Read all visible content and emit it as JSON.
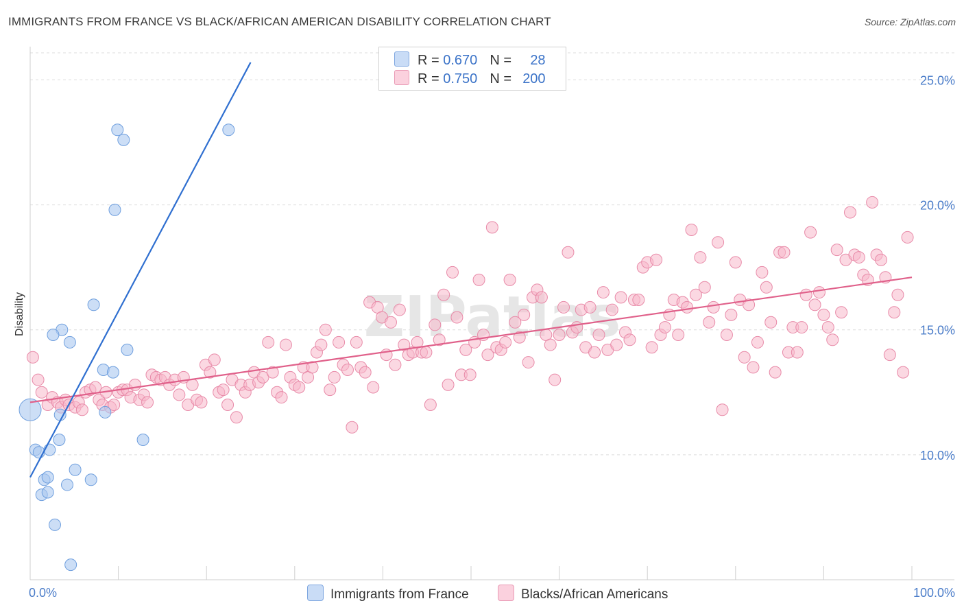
{
  "header": {
    "title": "IMMIGRANTS FROM FRANCE VS BLACK/AFRICAN AMERICAN DISABILITY CORRELATION CHART",
    "source": "Source: ZipAtlas.com"
  },
  "watermark": "ZIPatlas",
  "legend": {
    "rows": [
      {
        "r_label": "R = ",
        "r_value": "0.670",
        "n_label": "N = ",
        "n_value": "28",
        "color": "#aac8f0"
      },
      {
        "r_label": "R = ",
        "r_value": "0.750",
        "n_label": "N = ",
        "n_value": "200",
        "color": "#f7b8cb"
      }
    ]
  },
  "bottom_legend": {
    "items": [
      {
        "label": "Immigrants from France",
        "color": "#aac8f0"
      },
      {
        "label": "Blacks/African Americans",
        "color": "#f7b8cb"
      }
    ]
  },
  "chart_data": {
    "type": "scatter",
    "title": "IMMIGRANTS FROM FRANCE VS BLACK/AFRICAN AMERICAN DISABILITY CORRELATION CHART",
    "xlabel": "",
    "ylabel": "Disability",
    "xlim": [
      0,
      100
    ],
    "ylim": [
      5.0,
      26.0
    ],
    "x_tick_labels": [
      "0.0%",
      "100.0%"
    ],
    "y_ticks": [
      10,
      15,
      20,
      25
    ],
    "y_tick_labels": [
      "10.0%",
      "15.0%",
      "20.0%",
      "25.0%"
    ],
    "series": [
      {
        "name": "Immigrants from France",
        "color": "#aac8f0",
        "stroke": "#6f9fde",
        "line_color": "#2f6fd0",
        "R": 0.67,
        "N": 28,
        "trend": {
          "x": [
            0,
            25
          ],
          "y": [
            9.1,
            25.7
          ]
        },
        "points": [
          [
            0.0,
            11.8
          ],
          [
            0.6,
            10.2
          ],
          [
            1.0,
            10.1
          ],
          [
            1.6,
            9.0
          ],
          [
            2.2,
            10.2
          ],
          [
            1.3,
            8.4
          ],
          [
            2.0,
            9.1
          ],
          [
            2.0,
            8.5
          ],
          [
            2.8,
            7.2
          ],
          [
            3.3,
            10.6
          ],
          [
            3.6,
            15.0
          ],
          [
            2.6,
            14.8
          ],
          [
            4.5,
            14.5
          ],
          [
            4.2,
            8.8
          ],
          [
            3.4,
            11.6
          ],
          [
            5.1,
            9.4
          ],
          [
            4.6,
            5.6
          ],
          [
            6.9,
            9.0
          ],
          [
            7.2,
            16.0
          ],
          [
            8.3,
            13.4
          ],
          [
            8.5,
            11.7
          ],
          [
            9.4,
            13.3
          ],
          [
            9.6,
            19.8
          ],
          [
            9.9,
            23.0
          ],
          [
            10.6,
            22.6
          ],
          [
            11.0,
            14.2
          ],
          [
            12.8,
            10.6
          ],
          [
            22.5,
            23.0
          ]
        ]
      },
      {
        "name": "Blacks/African Americans",
        "color": "#f7b8cb",
        "stroke": "#e88aa8",
        "line_color": "#e0608a",
        "R": 0.75,
        "N": 200,
        "trend": {
          "x": [
            0,
            100
          ],
          "y": [
            12.1,
            17.1
          ]
        },
        "points": [
          [
            0.3,
            13.9
          ],
          [
            0.9,
            13.0
          ],
          [
            1.3,
            12.5
          ],
          [
            2.0,
            12.0
          ],
          [
            2.5,
            12.3
          ],
          [
            3.1,
            12.1
          ],
          [
            3.5,
            11.9
          ],
          [
            4.0,
            12.2
          ],
          [
            4.4,
            12.0
          ],
          [
            5.1,
            11.9
          ],
          [
            5.5,
            12.1
          ],
          [
            5.9,
            11.8
          ],
          [
            6.3,
            12.5
          ],
          [
            6.8,
            12.6
          ],
          [
            7.4,
            12.7
          ],
          [
            7.8,
            12.2
          ],
          [
            8.2,
            12.0
          ],
          [
            8.6,
            12.5
          ],
          [
            9.1,
            11.9
          ],
          [
            9.5,
            12.0
          ],
          [
            10.0,
            12.5
          ],
          [
            10.5,
            12.6
          ],
          [
            11.0,
            12.6
          ],
          [
            11.4,
            12.3
          ],
          [
            11.9,
            12.8
          ],
          [
            12.4,
            12.2
          ],
          [
            12.9,
            12.4
          ],
          [
            13.3,
            12.1
          ],
          [
            13.8,
            13.2
          ],
          [
            14.3,
            13.1
          ],
          [
            14.8,
            13.0
          ],
          [
            15.3,
            13.1
          ],
          [
            15.8,
            12.8
          ],
          [
            16.4,
            13.0
          ],
          [
            16.9,
            12.4
          ],
          [
            17.4,
            13.1
          ],
          [
            17.9,
            12.0
          ],
          [
            18.4,
            12.8
          ],
          [
            18.9,
            12.2
          ],
          [
            19.4,
            12.1
          ],
          [
            19.9,
            13.6
          ],
          [
            20.4,
            13.3
          ],
          [
            20.9,
            13.8
          ],
          [
            21.4,
            12.5
          ],
          [
            21.9,
            12.6
          ],
          [
            22.4,
            12.0
          ],
          [
            22.9,
            13.0
          ],
          [
            23.4,
            11.5
          ],
          [
            23.9,
            12.8
          ],
          [
            24.4,
            12.5
          ],
          [
            24.9,
            12.8
          ],
          [
            25.4,
            13.3
          ],
          [
            25.9,
            12.9
          ],
          [
            26.4,
            13.1
          ],
          [
            27.0,
            14.5
          ],
          [
            27.5,
            13.3
          ],
          [
            28.0,
            12.5
          ],
          [
            28.5,
            12.3
          ],
          [
            29.0,
            14.4
          ],
          [
            29.5,
            13.1
          ],
          [
            30.0,
            12.8
          ],
          [
            30.5,
            12.7
          ],
          [
            31.0,
            13.5
          ],
          [
            31.5,
            13.1
          ],
          [
            32.0,
            13.5
          ],
          [
            32.5,
            14.1
          ],
          [
            33.0,
            14.4
          ],
          [
            33.5,
            15.0
          ],
          [
            34.0,
            12.6
          ],
          [
            34.5,
            13.1
          ],
          [
            35.0,
            14.5
          ],
          [
            35.5,
            13.6
          ],
          [
            36.0,
            13.4
          ],
          [
            36.5,
            11.1
          ],
          [
            37.0,
            14.5
          ],
          [
            37.5,
            13.5
          ],
          [
            38.0,
            13.3
          ],
          [
            38.5,
            16.1
          ],
          [
            38.9,
            12.7
          ],
          [
            39.4,
            15.9
          ],
          [
            39.9,
            15.5
          ],
          [
            40.4,
            14.0
          ],
          [
            40.9,
            15.3
          ],
          [
            41.4,
            13.6
          ],
          [
            41.9,
            15.8
          ],
          [
            42.4,
            14.4
          ],
          [
            42.9,
            14.0
          ],
          [
            43.4,
            14.1
          ],
          [
            43.9,
            14.5
          ],
          [
            44.4,
            14.1
          ],
          [
            44.9,
            14.1
          ],
          [
            45.4,
            12.0
          ],
          [
            45.9,
            15.2
          ],
          [
            46.4,
            14.6
          ],
          [
            46.9,
            16.4
          ],
          [
            47.4,
            12.8
          ],
          [
            47.9,
            17.3
          ],
          [
            48.4,
            15.5
          ],
          [
            48.9,
            13.2
          ],
          [
            49.4,
            14.2
          ],
          [
            49.9,
            13.2
          ],
          [
            50.4,
            14.5
          ],
          [
            50.9,
            17.0
          ],
          [
            51.4,
            14.8
          ],
          [
            51.9,
            14.0
          ],
          [
            52.4,
            19.1
          ],
          [
            52.9,
            14.3
          ],
          [
            53.4,
            14.2
          ],
          [
            53.9,
            14.5
          ],
          [
            54.4,
            17.0
          ],
          [
            55.0,
            15.3
          ],
          [
            55.5,
            14.7
          ],
          [
            56.0,
            15.6
          ],
          [
            56.5,
            13.7
          ],
          [
            57.0,
            16.3
          ],
          [
            57.5,
            16.6
          ],
          [
            58.0,
            16.3
          ],
          [
            58.5,
            14.8
          ],
          [
            59.0,
            14.4
          ],
          [
            59.5,
            13.0
          ],
          [
            60.0,
            14.8
          ],
          [
            60.5,
            15.9
          ],
          [
            61.0,
            18.1
          ],
          [
            61.5,
            14.9
          ],
          [
            62.0,
            15.1
          ],
          [
            62.5,
            15.8
          ],
          [
            63.0,
            14.3
          ],
          [
            63.5,
            15.9
          ],
          [
            64.0,
            14.1
          ],
          [
            64.5,
            14.8
          ],
          [
            65.0,
            16.5
          ],
          [
            65.5,
            14.2
          ],
          [
            66.0,
            15.8
          ],
          [
            66.5,
            14.4
          ],
          [
            67.0,
            16.3
          ],
          [
            67.5,
            14.9
          ],
          [
            68.0,
            14.6
          ],
          [
            68.5,
            16.2
          ],
          [
            69.0,
            16.2
          ],
          [
            69.5,
            17.5
          ],
          [
            70.0,
            17.7
          ],
          [
            70.5,
            14.3
          ],
          [
            71.0,
            17.8
          ],
          [
            71.5,
            14.8
          ],
          [
            72.0,
            15.1
          ],
          [
            72.5,
            15.6
          ],
          [
            73.0,
            16.2
          ],
          [
            73.5,
            14.8
          ],
          [
            74.0,
            16.1
          ],
          [
            74.5,
            15.9
          ],
          [
            75.0,
            19.0
          ],
          [
            75.5,
            16.4
          ],
          [
            76.0,
            17.9
          ],
          [
            76.5,
            16.7
          ],
          [
            77.0,
            15.3
          ],
          [
            77.5,
            15.9
          ],
          [
            78.0,
            18.5
          ],
          [
            78.5,
            11.8
          ],
          [
            79.0,
            14.8
          ],
          [
            79.5,
            15.6
          ],
          [
            80.0,
            17.7
          ],
          [
            80.5,
            16.2
          ],
          [
            81.0,
            13.9
          ],
          [
            81.5,
            16.0
          ],
          [
            82.0,
            13.5
          ],
          [
            82.5,
            14.5
          ],
          [
            83.0,
            17.3
          ],
          [
            83.5,
            16.7
          ],
          [
            84.0,
            15.3
          ],
          [
            84.5,
            13.3
          ],
          [
            85.0,
            18.1
          ],
          [
            85.5,
            18.1
          ],
          [
            86.0,
            14.1
          ],
          [
            86.5,
            15.1
          ],
          [
            87.0,
            14.1
          ],
          [
            87.5,
            15.1
          ],
          [
            88.0,
            16.4
          ],
          [
            88.5,
            18.9
          ],
          [
            89.0,
            16.0
          ],
          [
            89.5,
            16.5
          ],
          [
            90.0,
            15.6
          ],
          [
            90.5,
            15.1
          ],
          [
            91.0,
            14.6
          ],
          [
            91.5,
            18.2
          ],
          [
            92.0,
            15.7
          ],
          [
            92.5,
            17.8
          ],
          [
            93.0,
            19.7
          ],
          [
            93.5,
            18.0
          ],
          [
            94.0,
            17.9
          ],
          [
            94.5,
            17.2
          ],
          [
            95.0,
            17.0
          ],
          [
            95.5,
            20.1
          ],
          [
            96.0,
            18.0
          ],
          [
            96.5,
            17.8
          ],
          [
            97.0,
            17.1
          ],
          [
            97.5,
            14.0
          ],
          [
            98.0,
            15.7
          ],
          [
            98.4,
            16.4
          ],
          [
            99.0,
            13.3
          ],
          [
            99.5,
            18.7
          ]
        ]
      }
    ]
  }
}
